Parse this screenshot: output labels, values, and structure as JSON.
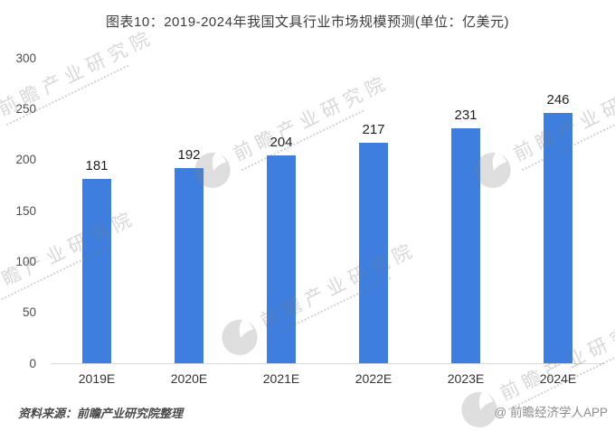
{
  "chart_data": {
    "type": "bar",
    "title": "图表10：2019-2024年我国文具行业市场规模预测(单位：亿美元)",
    "categories": [
      "2019E",
      "2020E",
      "2021E",
      "2022E",
      "2023E",
      "2024E"
    ],
    "values": [
      181,
      192,
      204,
      217,
      231,
      246
    ],
    "xlabel": "",
    "ylabel": "",
    "ylim": [
      0,
      300
    ],
    "yticks": [
      0,
      50,
      100,
      150,
      200,
      250,
      300
    ],
    "bar_color": "#3e7ede",
    "grid": false,
    "legend": "none",
    "value_labels_shown": true
  },
  "footer": {
    "source": "资料来源：前瞻产业研究院整理",
    "brand": "@ 前瞻经济学人APP"
  },
  "watermark": {
    "text": "前瞻产业研究院"
  }
}
